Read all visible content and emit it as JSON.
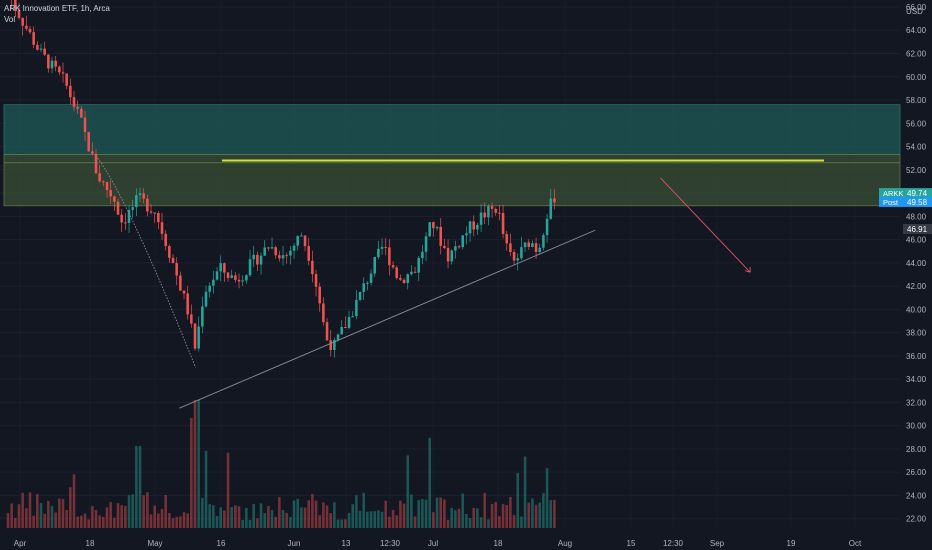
{
  "header": {
    "title": "ARK Innovation ETF, 1h, Arca",
    "indicator": "Vol",
    "currency": "USD"
  },
  "price_labels": {
    "last_symbol": "ARKK",
    "last_value": "49.74",
    "post_label": "Post",
    "post_value": "49.58",
    "cursor_value": "46.91"
  },
  "colors": {
    "background": "#131722",
    "up": "#26a69a",
    "down": "#ef5350",
    "zone_teal": "#1f5a55",
    "zone_olive": "#3a4f35",
    "horizontal_line": "#d5e532",
    "trendline": "#8a8f9a",
    "projection_arrow": "#e05563",
    "ark_badge": "#26a69a",
    "post_badge": "#2196f3"
  },
  "chart_data": {
    "type": "candlestick",
    "symbol": "ARKK",
    "interval": "1h",
    "x_tick_labels": [
      "Apr",
      "18",
      "May",
      "16",
      "Jun",
      "13",
      "12:30",
      "Jul",
      "18",
      "Aug",
      "15",
      "12:30",
      "Sep",
      "19",
      "Oct"
    ],
    "y_tick_labels": [
      "66.00",
      "64.00",
      "62.00",
      "60.00",
      "58.00",
      "56.00",
      "54.00",
      "52.00",
      "50.00",
      "48.00",
      "46.00",
      "44.00",
      "42.00",
      "40.00",
      "38.00",
      "36.00",
      "34.00",
      "32.00",
      "30.00",
      "28.00",
      "26.00",
      "24.00",
      "22.00"
    ],
    "ylim": [
      21.2,
      66.6
    ],
    "price_path_anchors": [
      {
        "t": 0,
        "p": 67.2
      },
      {
        "t": 2,
        "p": 64.5
      },
      {
        "t": 4,
        "p": 62.0
      },
      {
        "t": 7,
        "p": 59.5
      },
      {
        "t": 9,
        "p": 56.0
      },
      {
        "t": 11,
        "p": 51.5
      },
      {
        "t": 13,
        "p": 49.5
      },
      {
        "t": 14,
        "p": 47.5
      },
      {
        "t": 16,
        "p": 49.5
      },
      {
        "t": 18,
        "p": 48.5
      },
      {
        "t": 20,
        "p": 44.5
      },
      {
        "t": 22,
        "p": 40.0
      },
      {
        "t": 23,
        "p": 36.5
      },
      {
        "t": 24,
        "p": 41.5
      },
      {
        "t": 26,
        "p": 43.5
      },
      {
        "t": 28,
        "p": 42.5
      },
      {
        "t": 30,
        "p": 44.0
      },
      {
        "t": 32,
        "p": 45.5
      },
      {
        "t": 34,
        "p": 44.5
      },
      {
        "t": 36,
        "p": 46.5
      },
      {
        "t": 37,
        "p": 44.5
      },
      {
        "t": 38,
        "p": 41.5
      },
      {
        "t": 39,
        "p": 37.5
      },
      {
        "t": 40,
        "p": 36.8
      },
      {
        "t": 42,
        "p": 39.5
      },
      {
        "t": 44,
        "p": 42.5
      },
      {
        "t": 46,
        "p": 45.5
      },
      {
        "t": 48,
        "p": 42.5
      },
      {
        "t": 50,
        "p": 43.5
      },
      {
        "t": 52,
        "p": 47.5
      },
      {
        "t": 54,
        "p": 44.5
      },
      {
        "t": 56,
        "p": 46.5
      },
      {
        "t": 58,
        "p": 48.0
      },
      {
        "t": 60,
        "p": 48.8
      },
      {
        "t": 61,
        "p": 45.5
      },
      {
        "t": 62,
        "p": 44.0
      },
      {
        "t": 64,
        "p": 46.0
      },
      {
        "t": 65,
        "p": 45.0
      },
      {
        "t": 66,
        "p": 48.0
      },
      {
        "t": 67,
        "p": 49.74
      }
    ],
    "candle_count": 150,
    "volume_scale_max": 1.0,
    "annotations": {
      "resistance_zone_upper": {
        "from": 53.3,
        "to": 57.6
      },
      "resistance_zone_lower": {
        "from": 48.9,
        "to": 53.3
      },
      "zone_inner_line": 52.6,
      "horizontal_level": 52.8,
      "rising_trendline": [
        {
          "t": 21,
          "p": 31.5
        },
        {
          "t": 72,
          "p": 46.8
        }
      ],
      "decline_curve": [
        {
          "t": 11,
          "p": 53.0
        },
        {
          "t": 23,
          "p": 35.0
        }
      ],
      "projection_arrow": [
        {
          "t": 80,
          "p": 51.3
        },
        {
          "t": 91,
          "p": 43.2
        }
      ],
      "last_price": 49.74,
      "post_price": 49.58,
      "cursor_price": 46.91
    }
  }
}
